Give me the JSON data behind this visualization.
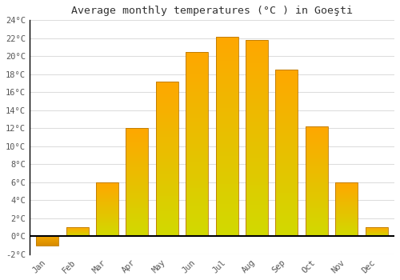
{
  "months": [
    "Jan",
    "Feb",
    "Mar",
    "Apr",
    "May",
    "Jun",
    "Jul",
    "Aug",
    "Sep",
    "Oct",
    "Nov",
    "Dec"
  ],
  "temperatures": [
    -1.0,
    1.0,
    6.0,
    12.0,
    17.2,
    20.5,
    22.2,
    21.8,
    18.5,
    12.2,
    6.0,
    1.0
  ],
  "bar_color_top": "#FFC020",
  "bar_color_bottom": "#FF8C00",
  "bar_edge_color": "#BB7700",
  "title": "Average monthly temperatures (°C ) in Goeşti",
  "ylim": [
    -2,
    24
  ],
  "ytick_step": 2,
  "background_color": "#ffffff",
  "grid_color": "#dddddd",
  "zero_line_color": "#000000",
  "spine_color": "#000000",
  "tick_label_color": "#555555",
  "title_color": "#333333"
}
